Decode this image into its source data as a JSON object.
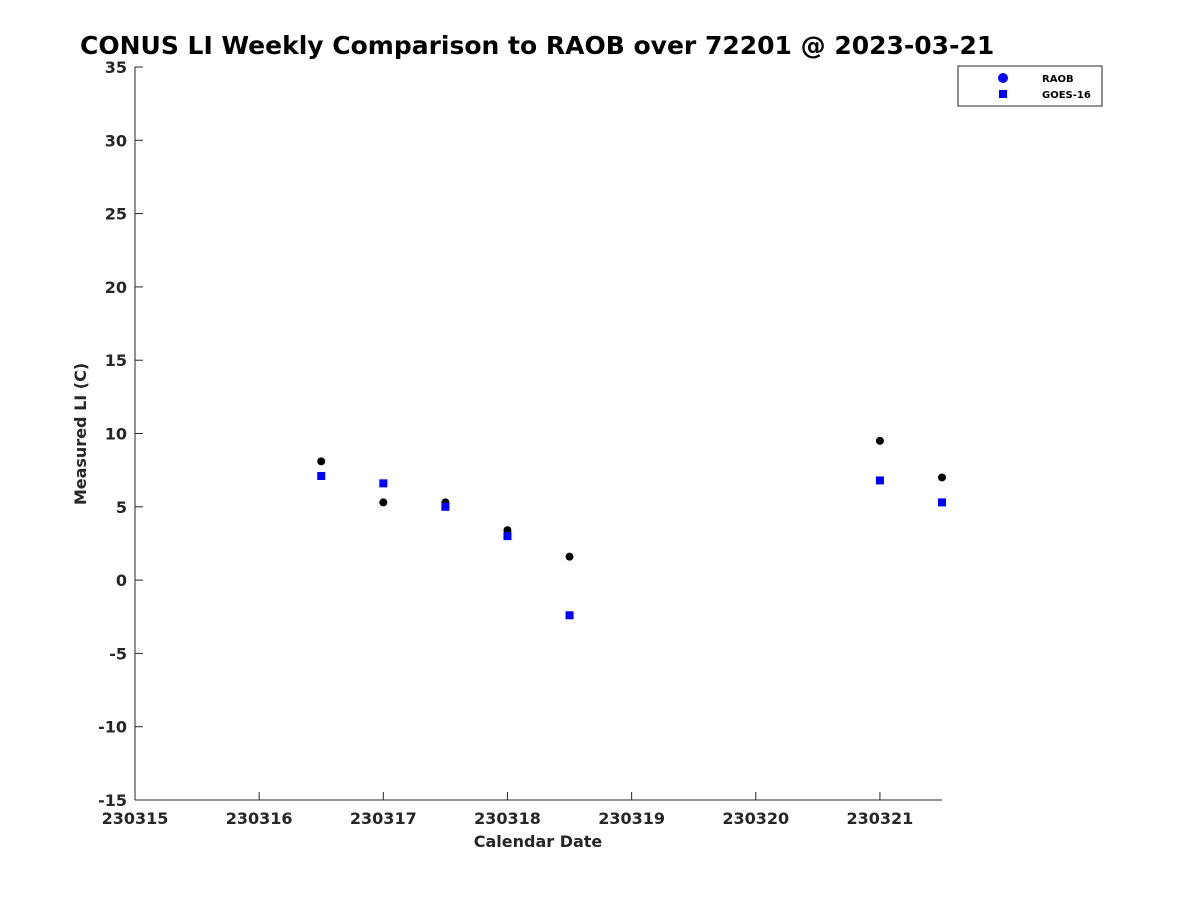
{
  "chart_data": {
    "type": "scatter",
    "title": "CONUS LI Weekly Comparison to RAOB over 72201 @ 2023-03-21",
    "xlabel": "Calendar Date",
    "ylabel": "Measured LI (C)",
    "xlim": [
      230315,
      230321.5
    ],
    "ylim": [
      -15,
      35
    ],
    "xticks": [
      230315,
      230316,
      230317,
      230318,
      230319,
      230320,
      230321
    ],
    "xtick_labels": [
      "230315",
      "230316",
      "230317",
      "230318",
      "230319",
      "230320",
      "230321"
    ],
    "yticks": [
      -15,
      -10,
      -5,
      0,
      5,
      10,
      15,
      20,
      25,
      30,
      35
    ],
    "ytick_labels": [
      "-15",
      "-10",
      "-5",
      "0",
      "5",
      "10",
      "15",
      "20",
      "25",
      "30",
      "35"
    ],
    "grid": false,
    "legend_position": "top-right",
    "series": [
      {
        "name": "RAOB",
        "marker": "circle",
        "marker_color": "#000000",
        "legend_color": "#0000ff",
        "x": [
          230316.5,
          230317,
          230317.5,
          230318,
          230318.5,
          230321,
          230321.5
        ],
        "y": [
          8.1,
          5.3,
          5.3,
          3.4,
          1.6,
          9.5,
          7.0
        ]
      },
      {
        "name": "GOES-16",
        "marker": "square",
        "marker_color": "#0000ff",
        "legend_color": "#0000ff",
        "x": [
          230316.5,
          230317,
          230317.5,
          230318,
          230318.5,
          230321,
          230321.5
        ],
        "y": [
          7.1,
          6.6,
          5.0,
          3.0,
          -2.4,
          6.8,
          5.3
        ]
      }
    ]
  }
}
